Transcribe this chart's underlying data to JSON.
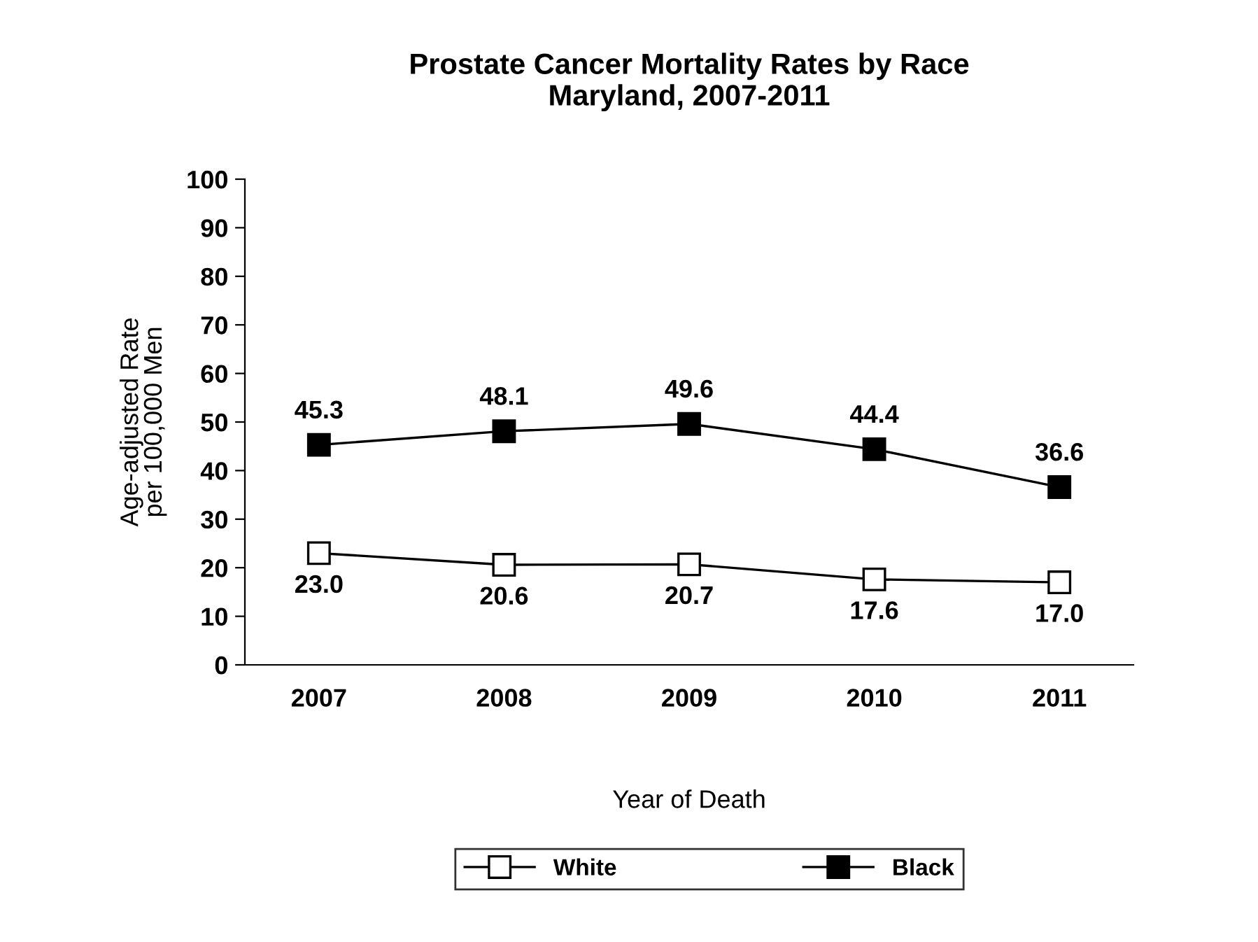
{
  "chart_data": {
    "type": "line",
    "title": "Prostate Cancer Mortality Rates by Race\nMaryland, 2007-2011",
    "xlabel": "Year of Death",
    "ylabel": "Age-adjusted Rate\nper 100,000 Men",
    "categories": [
      "2007",
      "2008",
      "2009",
      "2010",
      "2011"
    ],
    "series": [
      {
        "name": "White",
        "color": "#ffffff",
        "values": [
          23.0,
          20.6,
          20.7,
          17.6,
          17.0
        ],
        "value_labels": [
          "23.0",
          "20.6",
          "20.7",
          "17.6",
          "17.0"
        ]
      },
      {
        "name": "Black",
        "color": "#000000",
        "values": [
          45.3,
          48.1,
          49.6,
          44.4,
          36.6
        ],
        "value_labels": [
          "45.3",
          "48.1",
          "49.6",
          "44.4",
          "36.6"
        ]
      }
    ],
    "ylim": [
      0,
      100
    ],
    "yticks": [
      0,
      10,
      20,
      30,
      40,
      50,
      60,
      70,
      80,
      90,
      100
    ],
    "grid": false,
    "legend": "bottom",
    "marker": "square",
    "line_style": "solid"
  }
}
